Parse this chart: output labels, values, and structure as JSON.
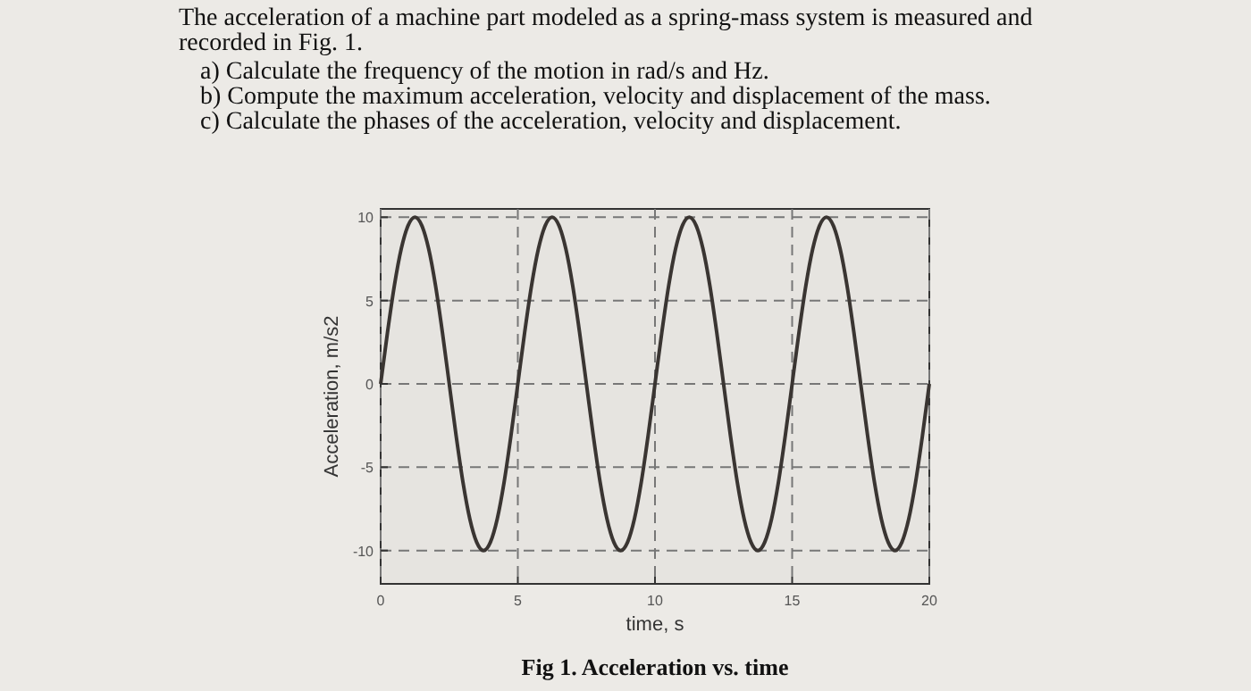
{
  "chart_data": {
    "type": "line",
    "title": "The acceleration of a machine part modeled as a spring-mass system is measured and recorded in Fig. 1.",
    "annotations": [
      "a) Calculate the frequency of the motion in rad/s and Hz.",
      "b) Compute the maximum acceleration, velocity and displacement of the mass.",
      "c) Calculate the phases of the acceleration, velocity and displacement.",
      "Fig 1. Acceleration vs. time"
    ],
    "xlabel": "time, s",
    "ylabel": "Acceleration, m/s2",
    "x": [
      0,
      0.25,
      0.5,
      0.75,
      1,
      1.25,
      1.5,
      1.75,
      2,
      2.25,
      2.5,
      2.75,
      3,
      3.25,
      3.5,
      3.75,
      4,
      4.25,
      4.5,
      4.75,
      5,
      5.25,
      5.5,
      5.75,
      6,
      6.25,
      6.5,
      6.75,
      7,
      7.25,
      7.5,
      7.75,
      8,
      8.25,
      8.5,
      8.75,
      9,
      9.25,
      9.5,
      9.75,
      10,
      10.25,
      10.5,
      10.75,
      11,
      11.25,
      11.5,
      11.75,
      12,
      12.25,
      12.5,
      12.75,
      13,
      13.25,
      13.5,
      13.75,
      14,
      14.25,
      14.5,
      14.75,
      15,
      15.25,
      15.5,
      15.75,
      16,
      16.25,
      16.5,
      16.75,
      17,
      17.25,
      17.5,
      17.75,
      18,
      18.25,
      18.5,
      18.75,
      19,
      19.25,
      19.5,
      19.75,
      20
    ],
    "series": [
      {
        "color": "#3a3532",
        "values": [
          0,
          3.1,
          5.9,
          8.1,
          9.5,
          10,
          9.5,
          8.1,
          5.9,
          3.1,
          0,
          -3.1,
          -5.9,
          -8.1,
          -9.5,
          -10,
          -9.5,
          -8.1,
          -5.9,
          -3.1,
          0,
          3.1,
          5.9,
          8.1,
          9.5,
          10,
          9.5,
          8.1,
          5.9,
          3.1,
          0,
          -3.1,
          -5.9,
          -8.1,
          -9.5,
          -10,
          -9.5,
          -8.1,
          -5.9,
          -3.1,
          0,
          3.1,
          5.9,
          8.1,
          9.5,
          10,
          9.5,
          8.1,
          5.9,
          3.1,
          0,
          -3.1,
          -5.9,
          -8.1,
          -9.5,
          -10,
          -9.5,
          -8.1,
          -5.9,
          -3.1,
          0,
          3.1,
          5.9,
          8.1,
          9.5,
          10,
          9.5,
          8.1,
          5.9,
          3.1,
          0,
          -3.1,
          -5.9,
          -8.1,
          -9.5,
          -10,
          -9.5,
          -8.1,
          -5.9,
          -3.1,
          0
        ]
      }
    ],
    "xlim": [
      0,
      20
    ],
    "xticks": [
      0,
      5,
      10,
      15,
      20
    ],
    "ylim": [
      -12,
      10.5
    ],
    "yticks": [
      -10,
      -5,
      0,
      5,
      10
    ],
    "grid": true,
    "line_style": "solid",
    "marker": "none"
  }
}
